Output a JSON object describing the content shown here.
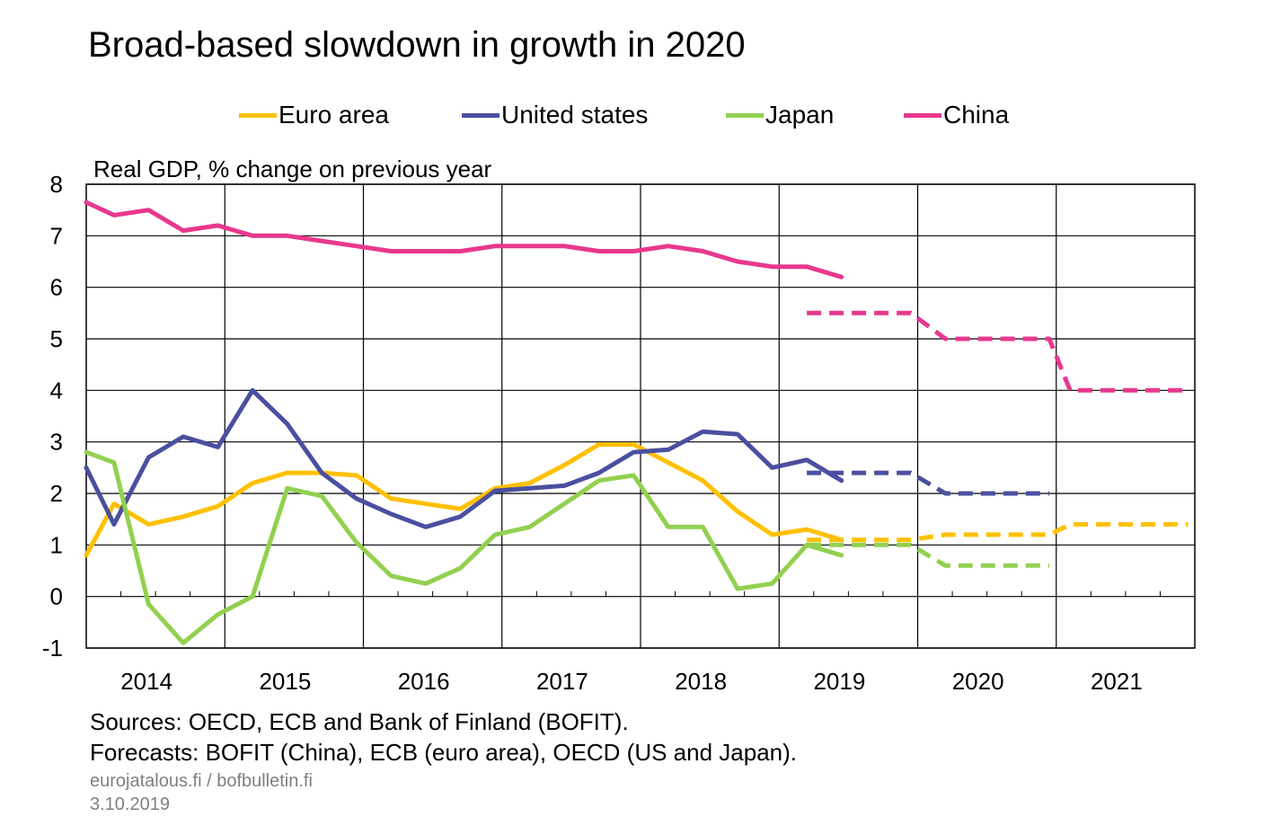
{
  "chart_data": {
    "type": "line",
    "title": "Broad-based slowdown in growth in 2020",
    "ylabel": "Real GDP, % change on previous year",
    "ylim": [
      -1,
      8
    ],
    "yticks": [
      -1,
      0,
      1,
      2,
      3,
      4,
      5,
      6,
      7,
      8
    ],
    "xlim": [
      2014,
      2022
    ],
    "xtick_labels": [
      "2014",
      "2015",
      "2016",
      "2017",
      "2018",
      "2019",
      "2020",
      "2021"
    ],
    "grid": true,
    "legend_position": "top",
    "series": [
      {
        "name": "Euro area",
        "color": "#FFC000",
        "actual": [
          [
            2014.0,
            0.8
          ],
          [
            2014.2,
            1.8
          ],
          [
            2014.45,
            1.4
          ],
          [
            2014.7,
            1.55
          ],
          [
            2014.95,
            1.75
          ],
          [
            2015.2,
            2.2
          ],
          [
            2015.45,
            2.4
          ],
          [
            2015.7,
            2.4
          ],
          [
            2015.95,
            2.35
          ],
          [
            2016.2,
            1.9
          ],
          [
            2016.45,
            1.8
          ],
          [
            2016.7,
            1.7
          ],
          [
            2016.95,
            2.1
          ],
          [
            2017.2,
            2.2
          ],
          [
            2017.45,
            2.55
          ],
          [
            2017.7,
            2.95
          ],
          [
            2017.95,
            2.95
          ],
          [
            2018.2,
            2.6
          ],
          [
            2018.45,
            2.25
          ],
          [
            2018.7,
            1.65
          ],
          [
            2018.95,
            1.2
          ],
          [
            2019.2,
            1.3
          ],
          [
            2019.45,
            1.1
          ]
        ],
        "forecast": [
          [
            2019.2,
            1.1
          ],
          [
            2019.95,
            1.1
          ],
          [
            2020.2,
            1.2
          ],
          [
            2020.95,
            1.2
          ],
          [
            2021.1,
            1.4
          ],
          [
            2021.95,
            1.4
          ]
        ]
      },
      {
        "name": "United states",
        "color": "#4B4FA0",
        "actual": [
          [
            2014.0,
            2.5
          ],
          [
            2014.2,
            1.4
          ],
          [
            2014.45,
            2.7
          ],
          [
            2014.7,
            3.1
          ],
          [
            2014.95,
            2.9
          ],
          [
            2015.2,
            4.0
          ],
          [
            2015.45,
            3.35
          ],
          [
            2015.7,
            2.4
          ],
          [
            2015.95,
            1.9
          ],
          [
            2016.2,
            1.6
          ],
          [
            2016.45,
            1.35
          ],
          [
            2016.7,
            1.55
          ],
          [
            2016.95,
            2.05
          ],
          [
            2017.2,
            2.1
          ],
          [
            2017.45,
            2.15
          ],
          [
            2017.7,
            2.4
          ],
          [
            2017.95,
            2.8
          ],
          [
            2018.2,
            2.85
          ],
          [
            2018.45,
            3.2
          ],
          [
            2018.7,
            3.15
          ],
          [
            2018.95,
            2.5
          ],
          [
            2019.2,
            2.65
          ],
          [
            2019.45,
            2.25
          ]
        ],
        "forecast": [
          [
            2019.2,
            2.4
          ],
          [
            2019.95,
            2.4
          ],
          [
            2020.2,
            2.0
          ],
          [
            2020.95,
            2.0
          ]
        ]
      },
      {
        "name": "Japan",
        "color": "#92D050",
        "actual": [
          [
            2014.0,
            2.8
          ],
          [
            2014.2,
            2.6
          ],
          [
            2014.45,
            -0.15
          ],
          [
            2014.7,
            -0.9
          ],
          [
            2014.95,
            -0.35
          ],
          [
            2015.2,
            0.0
          ],
          [
            2015.45,
            2.1
          ],
          [
            2015.7,
            1.95
          ],
          [
            2015.95,
            1.05
          ],
          [
            2016.2,
            0.4
          ],
          [
            2016.45,
            0.25
          ],
          [
            2016.7,
            0.55
          ],
          [
            2016.95,
            1.2
          ],
          [
            2017.2,
            1.35
          ],
          [
            2017.45,
            1.8
          ],
          [
            2017.7,
            2.25
          ],
          [
            2017.95,
            2.35
          ],
          [
            2018.2,
            1.35
          ],
          [
            2018.45,
            1.35
          ],
          [
            2018.7,
            0.15
          ],
          [
            2018.95,
            0.25
          ],
          [
            2019.2,
            1.0
          ],
          [
            2019.45,
            0.8
          ]
        ],
        "forecast": [
          [
            2019.2,
            1.0
          ],
          [
            2019.95,
            1.0
          ],
          [
            2020.2,
            0.6
          ],
          [
            2020.95,
            0.6
          ]
        ]
      },
      {
        "name": "China",
        "color": "#E8388E",
        "actual": [
          [
            2014.0,
            7.65
          ],
          [
            2014.2,
            7.4
          ],
          [
            2014.45,
            7.5
          ],
          [
            2014.7,
            7.1
          ],
          [
            2014.95,
            7.2
          ],
          [
            2015.2,
            7.0
          ],
          [
            2015.45,
            7.0
          ],
          [
            2015.7,
            6.9
          ],
          [
            2015.95,
            6.8
          ],
          [
            2016.2,
            6.7
          ],
          [
            2016.45,
            6.7
          ],
          [
            2016.7,
            6.7
          ],
          [
            2016.95,
            6.8
          ],
          [
            2017.2,
            6.8
          ],
          [
            2017.45,
            6.8
          ],
          [
            2017.7,
            6.7
          ],
          [
            2017.95,
            6.7
          ],
          [
            2018.2,
            6.8
          ],
          [
            2018.45,
            6.7
          ],
          [
            2018.7,
            6.5
          ],
          [
            2018.95,
            6.4
          ],
          [
            2019.2,
            6.4
          ],
          [
            2019.45,
            6.2
          ]
        ],
        "forecast": [
          [
            2019.2,
            5.5
          ],
          [
            2019.95,
            5.5
          ],
          [
            2020.2,
            5.0
          ],
          [
            2020.95,
            5.0
          ],
          [
            2021.1,
            4.0
          ],
          [
            2021.95,
            4.0
          ]
        ]
      }
    ]
  },
  "footer": {
    "sources": "Sources: OECD, ECB and Bank of Finland (BOFIT).",
    "forecasts": "Forecasts: BOFIT (China), ECB (euro area), OECD (US and Japan).",
    "site": "eurojatalous.fi  / bofbulletin.fi",
    "date": "3.10.2019"
  }
}
